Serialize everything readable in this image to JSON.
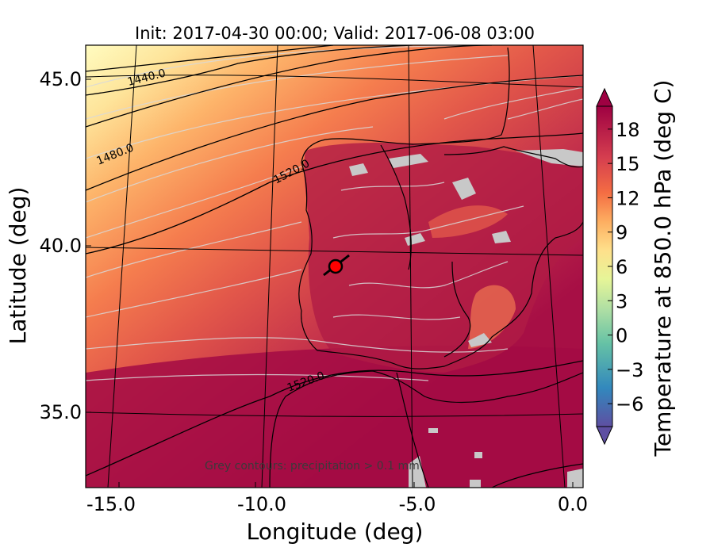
{
  "figure": {
    "title": "Init: 2017-04-30 00:00; Valid: 2017-06-08 03:00",
    "xlabel": "Longitude (deg)",
    "ylabel": "Latitude (deg)",
    "note": "Grey contours: precipitation > 0.1 mm",
    "colorbar_label": "Temperature at 850.0 hPa (deg C)"
  },
  "chart_data": {
    "type": "heatmap",
    "x_ticks": [
      "-15.0",
      "-10.0",
      "-5.0",
      "0.0"
    ],
    "y_ticks": [
      "45.0",
      "40.0",
      "35.0"
    ],
    "x_tick_values": [
      -15,
      -10,
      -5,
      0
    ],
    "y_tick_values": [
      45,
      40,
      35
    ],
    "xlim": [
      -16,
      0.3
    ],
    "ylim": [
      32.5,
      46.3
    ],
    "colorbar": {
      "ticks": [
        "18",
        "15",
        "12",
        "9",
        "6",
        "3",
        "0",
        "−3",
        "−6"
      ],
      "tick_values": [
        18,
        15,
        12,
        9,
        6,
        3,
        0,
        -3,
        -6
      ],
      "range": [
        -8,
        20
      ],
      "extend": "both",
      "colors": [
        "#5e4fa2",
        "#3288bd",
        "#66c2a5",
        "#abdda4",
        "#e6f598",
        "#fee08b",
        "#fdae61",
        "#f46d43",
        "#d53e4f",
        "#9e0142"
      ]
    },
    "contour_labels": [
      "1440.0",
      "1480.0",
      "1520.0",
      "1520.0"
    ],
    "marker": {
      "lon": -7.7,
      "lat": 39.3,
      "color": "#ff0000"
    }
  }
}
